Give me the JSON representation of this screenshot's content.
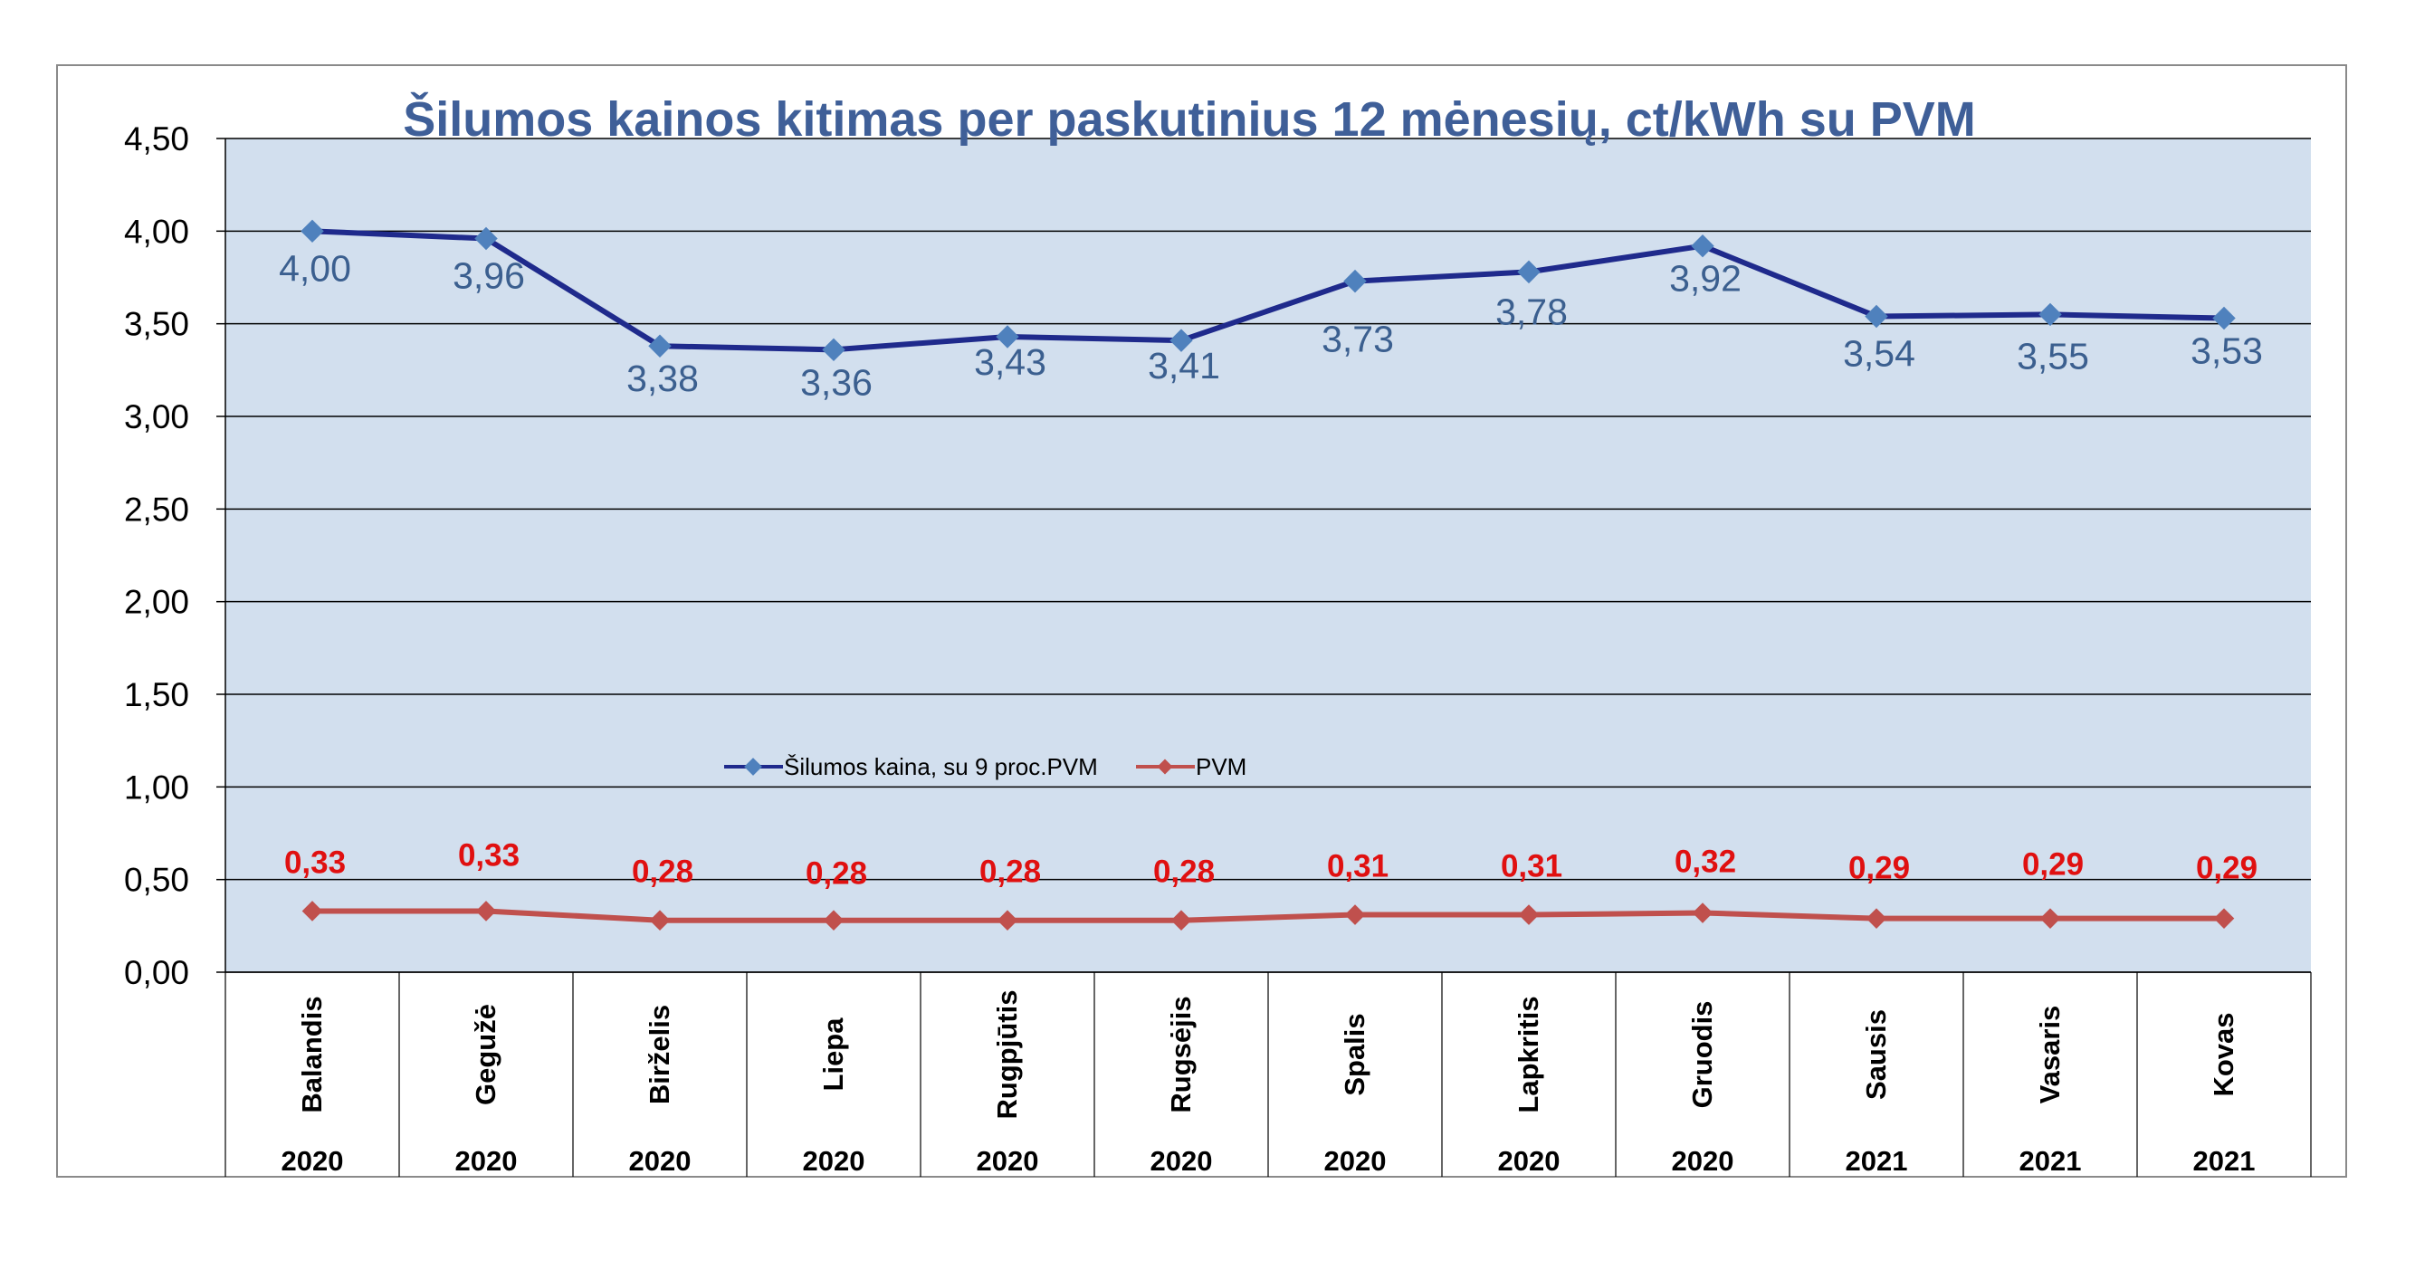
{
  "chart_data": {
    "type": "line",
    "title": "Šilumos kainos kitimas per paskutinius 12 mėnesių, ct/kWh su PVM",
    "categories": [
      "Balandis",
      "Gegužė",
      "Birželis",
      "Liepa",
      "Rugpjūtis",
      "Rugsėjis",
      "Spalis",
      "Lapkritis",
      "Gruodis",
      "Sausis",
      "Vasaris",
      "Kovas"
    ],
    "years": [
      "2020",
      "2020",
      "2020",
      "2020",
      "2020",
      "2020",
      "2020",
      "2020",
      "2020",
      "2021",
      "2021",
      "2021"
    ],
    "ylim": [
      0,
      4.5
    ],
    "yticks": [
      "0,00",
      "0,50",
      "1,00",
      "1,50",
      "2,00",
      "2,50",
      "3,00",
      "3,50",
      "4,00",
      "4,50"
    ],
    "legend_position": "center",
    "series": [
      {
        "name": "Šilumos kaina, su 9 proc.PVM",
        "color": "#1f2a8c",
        "markerColor": "#4f81bd",
        "values": [
          4.0,
          3.96,
          3.38,
          3.36,
          3.43,
          3.41,
          3.73,
          3.78,
          3.92,
          3.54,
          3.55,
          3.53
        ],
        "labels": [
          "4,00",
          "3,96",
          "3,38",
          "3,36",
          "3,43",
          "3,41",
          "3,73",
          "3,78",
          "3,92",
          "3,54",
          "3,55",
          "3,53"
        ]
      },
      {
        "name": "PVM",
        "color": "#c0504d",
        "markerColor": "#c0504d",
        "values": [
          0.33,
          0.33,
          0.28,
          0.28,
          0.28,
          0.28,
          0.31,
          0.31,
          0.32,
          0.29,
          0.29,
          0.29
        ],
        "labels": [
          "0,33",
          "0,33",
          "0,28",
          "0,28",
          "0,28",
          "0,28",
          "0,31",
          "0,31",
          "0,32",
          "0,29",
          "0,29",
          "0,29"
        ]
      }
    ]
  }
}
